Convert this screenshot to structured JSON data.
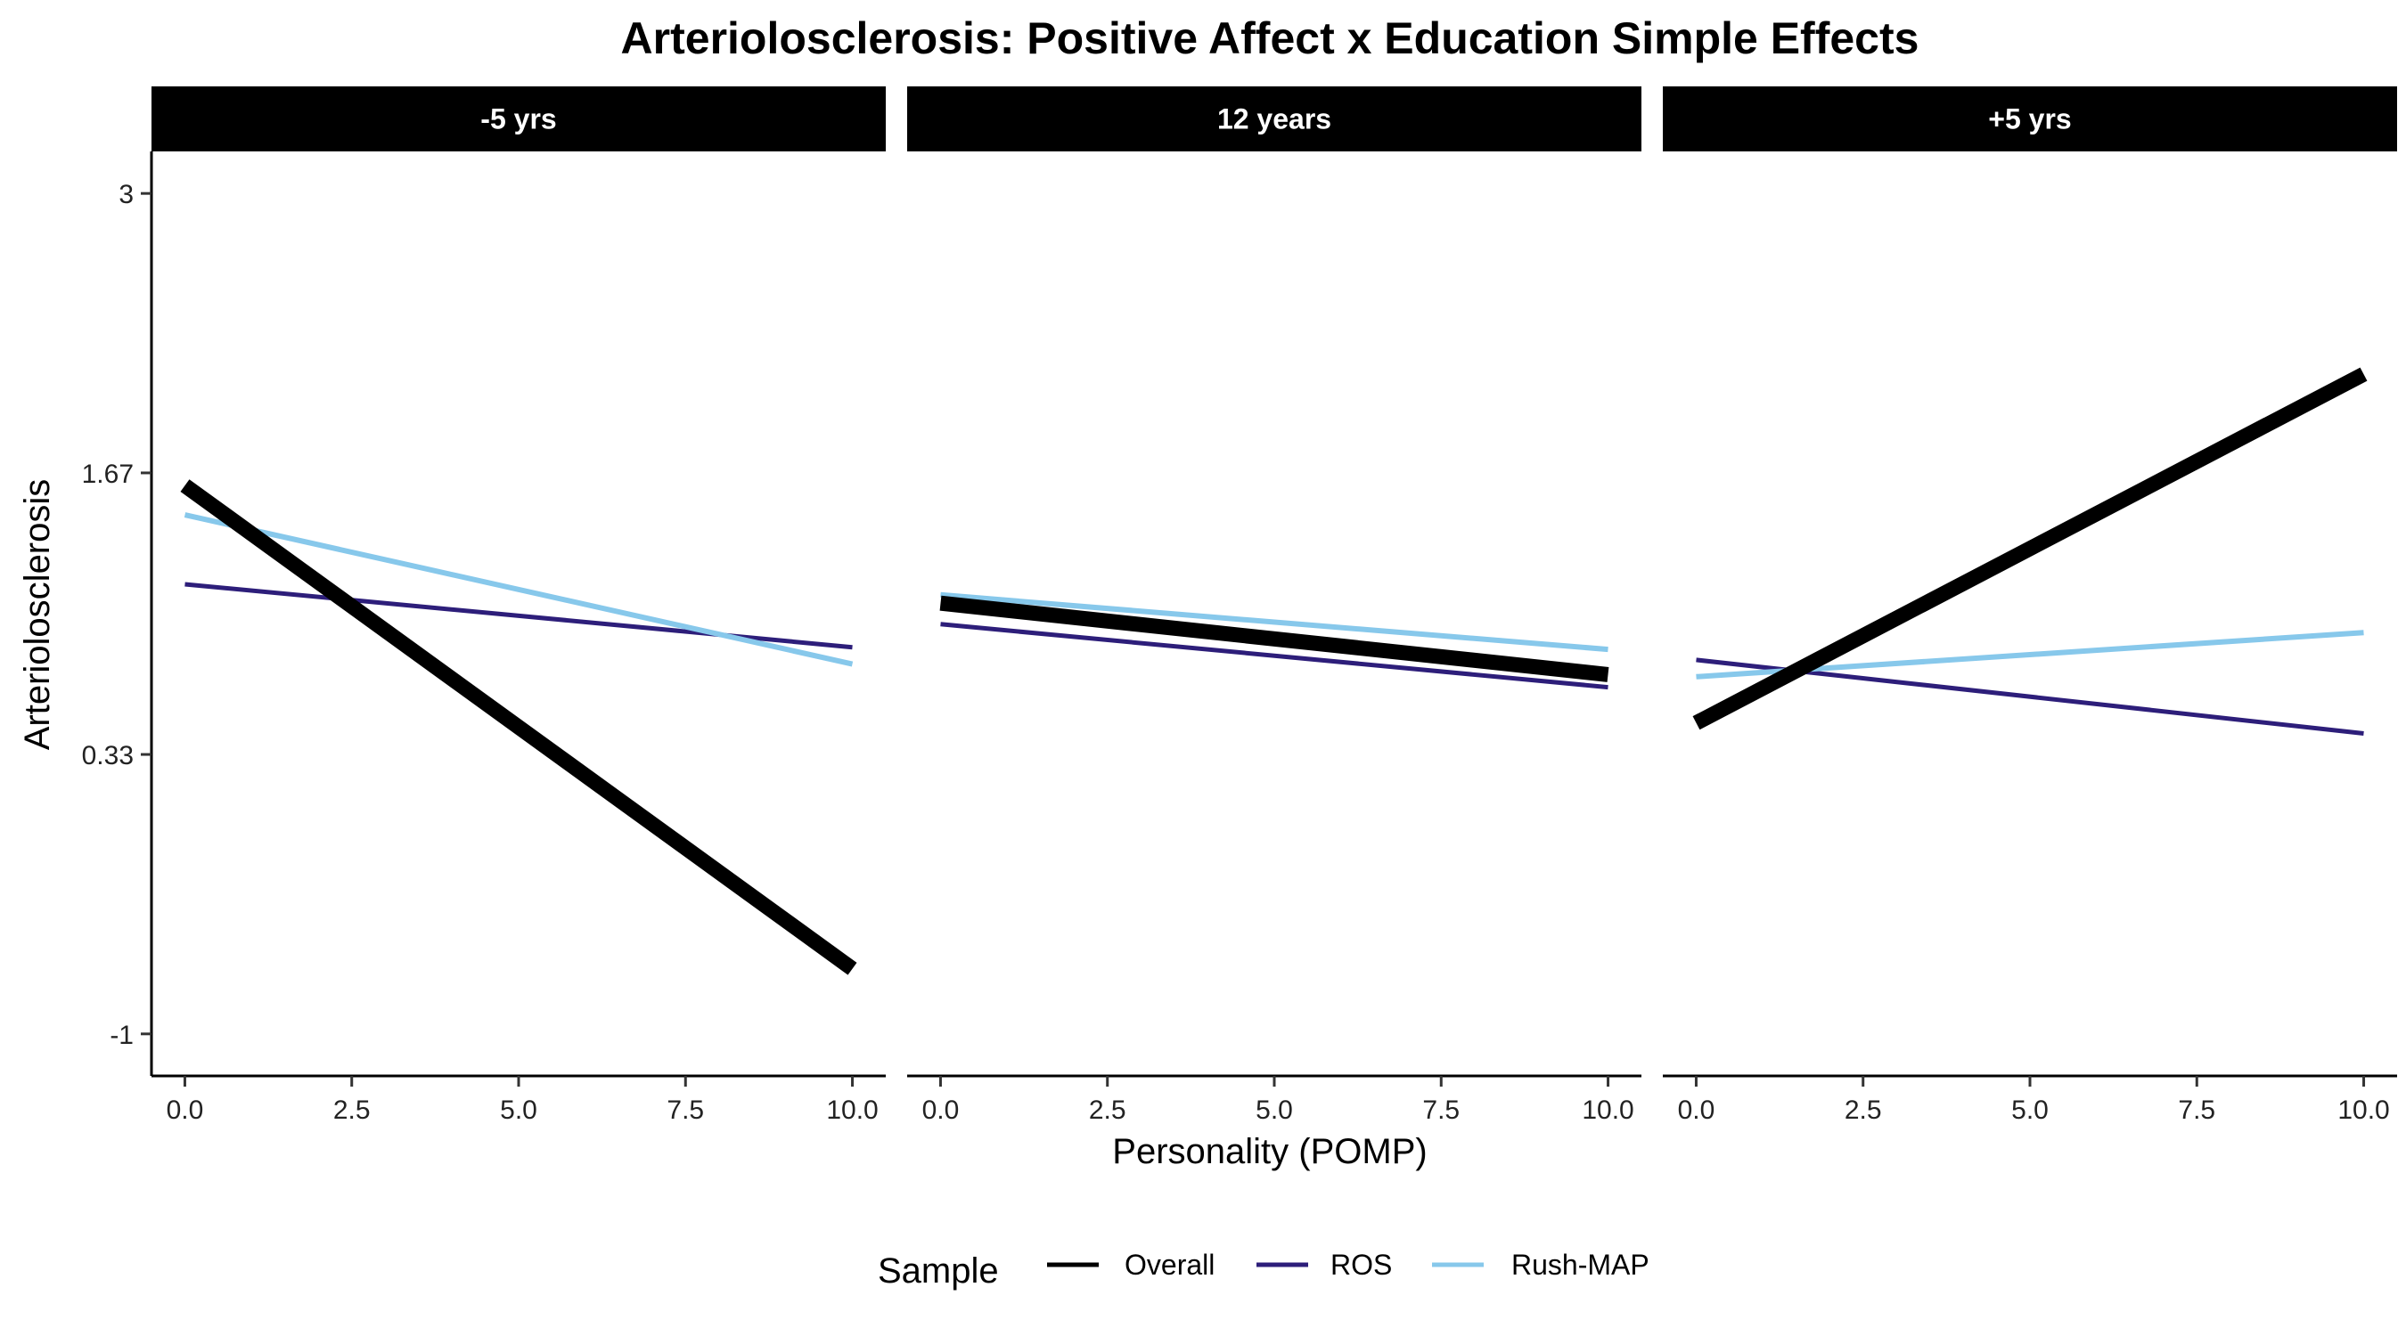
{
  "chart_data": {
    "type": "line",
    "title": "Arteriolosclerosis: Positive Affect x Education Simple Effects",
    "xlabel": "Personality (POMP)",
    "ylabel": "Arteriolosclerosis",
    "xlim": [
      -0.5,
      10.5
    ],
    "ylim": [
      -1.2,
      3.2
    ],
    "x_ticks": [
      0,
      2.5,
      5,
      7.5,
      10
    ],
    "x_tick_labels": [
      "0.0",
      "2.5",
      "5.0",
      "7.5",
      "10.0"
    ],
    "y_ticks": [
      -1,
      0.33,
      1.67,
      3
    ],
    "y_tick_labels": [
      "-1",
      "0.33",
      "1.67",
      "3"
    ],
    "grid": false,
    "legend": {
      "title": "Sample",
      "placement": "bottom",
      "entries": [
        {
          "name": "Overall",
          "color": "#000000"
        },
        {
          "name": "ROS",
          "color": "#2d1e7a"
        },
        {
          "name": "Rush-MAP",
          "color": "#87c8eb"
        }
      ]
    },
    "panels": [
      {
        "label": "-5 yrs",
        "series": [
          {
            "name": "Overall",
            "x": [
              0,
              10
            ],
            "y": [
              1.61,
              -0.69
            ]
          },
          {
            "name": "ROS",
            "x": [
              0,
              10
            ],
            "y": [
              1.14,
              0.84
            ]
          },
          {
            "name": "Rush-MAP",
            "x": [
              0,
              10
            ],
            "y": [
              1.47,
              0.76
            ]
          }
        ]
      },
      {
        "label": "12 years",
        "series": [
          {
            "name": "Overall",
            "x": [
              0,
              10
            ],
            "y": [
              1.05,
              0.71
            ]
          },
          {
            "name": "ROS",
            "x": [
              0,
              10
            ],
            "y": [
              0.95,
              0.65
            ]
          },
          {
            "name": "Rush-MAP",
            "x": [
              0,
              10
            ],
            "y": [
              1.09,
              0.83
            ]
          }
        ]
      },
      {
        "label": "+5 yrs",
        "series": [
          {
            "name": "Overall",
            "x": [
              0,
              10
            ],
            "y": [
              0.48,
              2.14
            ]
          },
          {
            "name": "ROS",
            "x": [
              0,
              10
            ],
            "y": [
              0.78,
              0.43
            ]
          },
          {
            "name": "Rush-MAP",
            "x": [
              0,
              10
            ],
            "y": [
              0.7,
              0.91
            ]
          }
        ]
      }
    ]
  }
}
